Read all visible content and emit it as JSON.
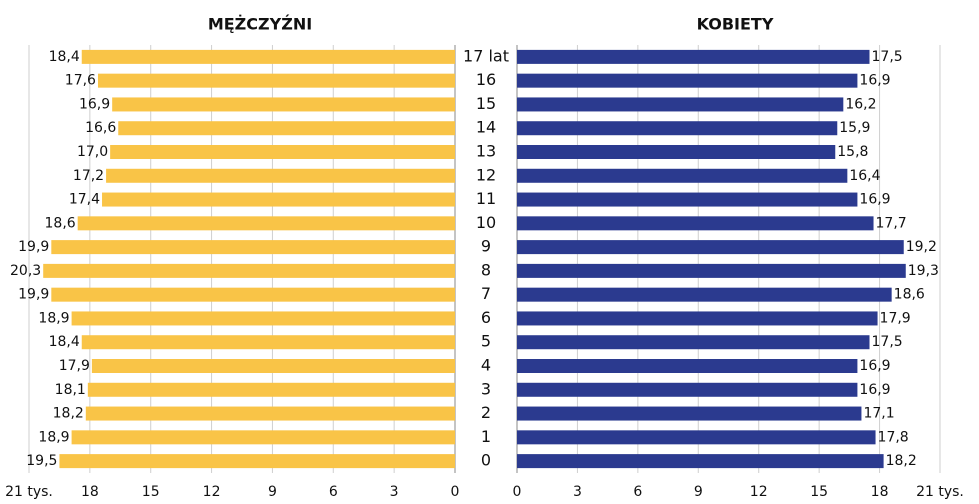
{
  "chart_data": [
    {
      "type": "hbar",
      "title": "MĘŻCZYŹNI",
      "x_reversed": true,
      "color": "#f9c447",
      "categories": [
        "17 lat",
        "16",
        "15",
        "14",
        "13",
        "12",
        "11",
        "10",
        "9",
        "8",
        "7",
        "6",
        "5",
        "4",
        "3",
        "2",
        "1",
        "0"
      ],
      "values": [
        18.4,
        17.6,
        16.9,
        16.6,
        17.0,
        17.2,
        17.4,
        18.6,
        19.9,
        20.3,
        19.9,
        18.9,
        18.4,
        17.9,
        18.1,
        18.2,
        18.9,
        19.5
      ],
      "value_labels": [
        "18,4",
        "17,6",
        "16,9",
        "16,6",
        "17,0",
        "17,2",
        "17,4",
        "18,6",
        "19,9",
        "20,3",
        "19,9",
        "18,9",
        "18,4",
        "17,9",
        "18,1",
        "18,2",
        "18,9",
        "19,5"
      ],
      "xlim": [
        0,
        21
      ],
      "xticks": [
        0,
        3,
        6,
        9,
        12,
        15,
        18,
        {
          "value": 21,
          "label": "21 tys."
        }
      ],
      "grid": true
    },
    {
      "type": "hbar",
      "title": "KOBIETY",
      "x_reversed": false,
      "color": "#2b3a8f",
      "values": [
        17.5,
        16.9,
        16.2,
        15.9,
        15.8,
        16.4,
        16.9,
        17.7,
        19.2,
        19.3,
        18.6,
        17.9,
        17.5,
        16.9,
        16.9,
        17.1,
        17.8,
        18.2
      ],
      "value_labels": [
        "17,5",
        "16,9",
        "16,2",
        "15,9",
        "15,8",
        "16,4",
        "16,9",
        "17,7",
        "19,2",
        "19,3",
        "18,6",
        "17,9",
        "17,5",
        "16,9",
        "16,9",
        "17,1",
        "17,8",
        "18,2"
      ],
      "xlim": [
        0,
        21
      ],
      "xticks": [
        0,
        3,
        6,
        9,
        12,
        15,
        18,
        {
          "value": 21,
          "label": "21 tys."
        }
      ],
      "grid": true
    }
  ]
}
